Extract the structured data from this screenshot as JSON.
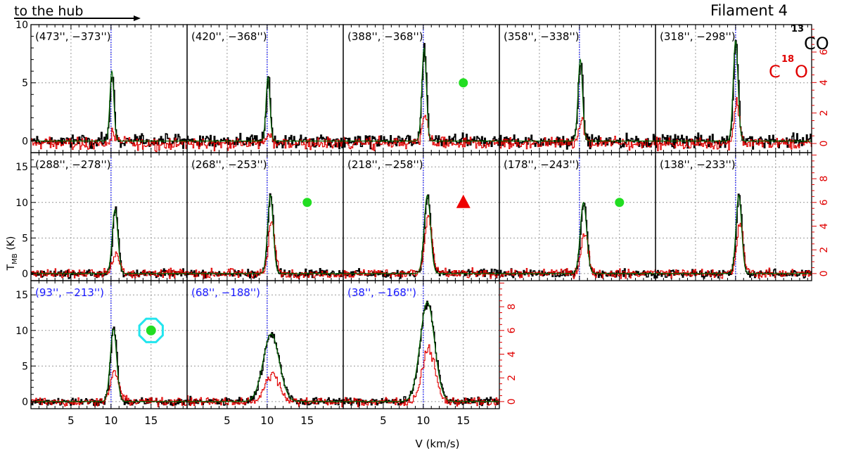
{
  "header": {
    "hub_label": "to the hub",
    "figure_title": "Filament 4"
  },
  "legend": {
    "co13": {
      "sup": "13",
      "base": "CO",
      "color": "#000000"
    },
    "c18o": {
      "pre": "C",
      "sup": "18",
      "post": "O",
      "color": "#e00000"
    }
  },
  "chart_data": {
    "type": "line",
    "title": "Filament 4",
    "xlabel": "V (km/s)",
    "ylabel_main": "T",
    "ylabel_sub": "MB",
    "ylabel_unit": " (K)",
    "xlim": [
      0,
      19.5
    ],
    "xticks": [
      5,
      10,
      15
    ],
    "x_tick_labels": [
      "5",
      "10",
      "15"
    ],
    "ref_velocity": 10,
    "series_colors": {
      "co13": "#000000",
      "co13_fit": "#006400",
      "c18o": "#e00000"
    },
    "row_left_axes": [
      {
        "ylim": [
          -1,
          10
        ],
        "ticks": [
          0,
          5,
          10
        ],
        "tick_labels": [
          "0",
          "5",
          "10"
        ]
      },
      {
        "ylim": [
          -1,
          17
        ],
        "ticks": [
          0,
          5,
          10,
          15
        ],
        "tick_labels": [
          "0",
          "5",
          "10",
          "15"
        ]
      },
      {
        "ylim": [
          -1,
          17
        ],
        "ticks": [
          0,
          5,
          10,
          15
        ],
        "tick_labels": [
          "0",
          "5",
          "10",
          "15"
        ]
      }
    ],
    "row_right_axes": [
      {
        "ylim": [
          -0.6,
          7.8
        ],
        "ticks": [
          0,
          2,
          4,
          6
        ],
        "tick_labels": [
          "0",
          "2",
          "4",
          "6"
        ]
      },
      {
        "ylim": [
          -0.6,
          10.2
        ],
        "ticks": [
          0,
          2,
          4,
          6,
          8
        ],
        "tick_labels": [
          "0",
          "2",
          "4",
          "6",
          "8"
        ]
      },
      {
        "ylim": [
          -0.6,
          10.2
        ],
        "ticks": [
          0,
          2,
          4,
          6,
          8
        ],
        "tick_labels": [
          "0",
          "2",
          "4",
          "6",
          "8"
        ]
      }
    ],
    "panels": [
      {
        "offset": "(473'', −373'')",
        "label_color": "#000000",
        "co13": {
          "peak": 6.0,
          "center": 10.1,
          "width": 0.25
        },
        "c18o": {
          "peak": 0.7,
          "center": 10.2,
          "width": 0.3
        },
        "marker": null
      },
      {
        "offset": "(420'', −368'')",
        "label_color": "#000000",
        "co13": {
          "peak": 5.5,
          "center": 10.1,
          "width": 0.25
        },
        "c18o": {
          "peak": 0.7,
          "center": 10.2,
          "width": 0.3
        },
        "marker": null
      },
      {
        "offset": "(388'', −368'')",
        "label_color": "#000000",
        "co13": {
          "peak": 8.0,
          "center": 10.1,
          "width": 0.28
        },
        "c18o": {
          "peak": 1.8,
          "center": 10.2,
          "width": 0.35
        },
        "marker": {
          "shape": "circle",
          "color": "#22dd22",
          "x": 15,
          "y": 5
        }
      },
      {
        "offset": "(358'', −338'')",
        "label_color": "#000000",
        "co13": {
          "peak": 7.0,
          "center": 10.1,
          "width": 0.28
        },
        "c18o": {
          "peak": 1.5,
          "center": 10.2,
          "width": 0.35
        },
        "marker": null
      },
      {
        "offset": "(318'', −298'')",
        "label_color": "#000000",
        "co13": {
          "peak": 8.6,
          "center": 10.0,
          "width": 0.3
        },
        "c18o": {
          "peak": 2.7,
          "center": 10.1,
          "width": 0.35
        },
        "marker": null
      },
      {
        "offset": "(288'', −278'')",
        "label_color": "#000000",
        "co13": {
          "peak": 9.0,
          "center": 10.5,
          "width": 0.35
        },
        "c18o": {
          "peak": 1.8,
          "center": 10.6,
          "width": 0.4
        },
        "marker": null
      },
      {
        "offset": "(268'', −253'')",
        "label_color": "#000000",
        "co13": {
          "peak": 11.0,
          "center": 10.4,
          "width": 0.35
        },
        "c18o": {
          "peak": 4.3,
          "center": 10.5,
          "width": 0.4
        },
        "marker": {
          "shape": "circle",
          "color": "#22dd22",
          "x": 15,
          "y": 10
        }
      },
      {
        "offset": "(218'', −258'')",
        "label_color": "#000000",
        "co13": {
          "peak": 11.0,
          "center": 10.5,
          "width": 0.4
        },
        "c18o": {
          "peak": 4.8,
          "center": 10.6,
          "width": 0.45
        },
        "marker": {
          "shape": "triangle",
          "color": "#ee0000",
          "x": 15,
          "y": 10
        }
      },
      {
        "offset": "(178'', −243'')",
        "label_color": "#000000",
        "co13": {
          "peak": 10.0,
          "center": 10.5,
          "width": 0.4
        },
        "c18o": {
          "peak": 3.3,
          "center": 10.6,
          "width": 0.45
        },
        "marker": {
          "shape": "circle",
          "color": "#22dd22",
          "x": 15,
          "y": 10
        }
      },
      {
        "offset": "(138'', −233'')",
        "label_color": "#000000",
        "co13": {
          "peak": 11.0,
          "center": 10.4,
          "width": 0.35
        },
        "c18o": {
          "peak": 4.3,
          "center": 10.5,
          "width": 0.4
        },
        "marker": null
      },
      {
        "offset": "(93'', −213'')",
        "label_color": "#1a1aff",
        "co13": {
          "peak": 10.2,
          "center": 10.3,
          "width": 0.4
        },
        "c18o": {
          "peak": 2.6,
          "center": 10.4,
          "width": 0.5
        },
        "marker": {
          "shape": "circle-ring",
          "color": "#22dd22",
          "ring_color": "#22e5ee",
          "x": 15,
          "y": 10
        }
      },
      {
        "offset": "(68'', −188'')",
        "label_color": "#1a1aff",
        "co13": {
          "peak": 9.5,
          "center": 10.5,
          "width": 1.0
        },
        "c18o": {
          "peak": 2.3,
          "center": 10.6,
          "width": 0.9
        },
        "marker": null
      },
      {
        "offset": "(38'', −168'')",
        "label_color": "#1a1aff",
        "co13": {
          "peak": 14.0,
          "center": 10.5,
          "width": 0.9
        },
        "c18o": {
          "peak": 4.4,
          "center": 10.6,
          "width": 0.8
        },
        "marker": null
      }
    ]
  }
}
